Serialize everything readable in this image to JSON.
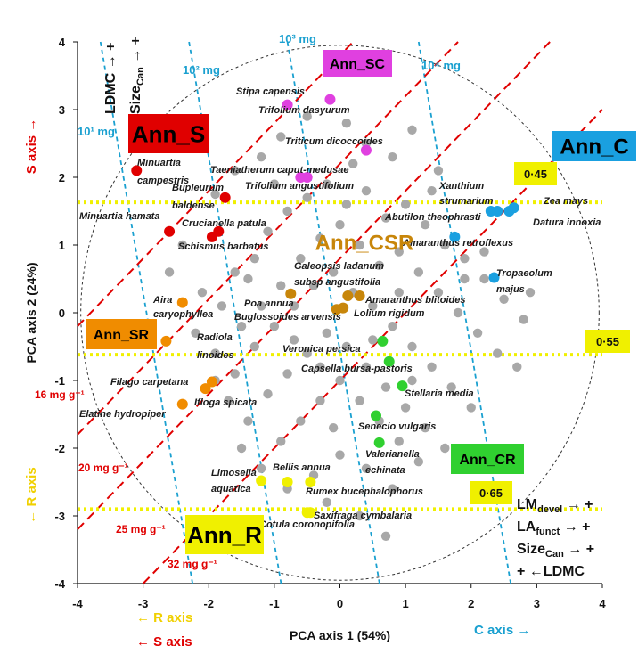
{
  "chart_data": {
    "type": "scatter",
    "xlabel": "PCA axis 1 (54%)",
    "ylabel": "PCA axis 2 (24%)",
    "xlim": [
      -4,
      4
    ],
    "ylim": [
      -4,
      4
    ],
    "xticks": [
      "-4",
      "-3",
      "-2",
      "-1",
      "0",
      "1",
      "2",
      "3",
      "4"
    ],
    "yticks": [
      "-4",
      "-3",
      "-2",
      "-1",
      "0",
      "1",
      "2",
      "3",
      "4"
    ],
    "background_points": [
      [
        -1.9,
        1.75
      ],
      [
        -1.6,
        2.1
      ],
      [
        -1.2,
        2.3
      ],
      [
        -0.9,
        2.6
      ],
      [
        -0.5,
        2.9
      ],
      [
        0.1,
        2.8
      ],
      [
        0.4,
        2.5
      ],
      [
        0.8,
        2.3
      ],
      [
        1.1,
        2.7
      ],
      [
        1.5,
        2.1
      ],
      [
        -2.4,
        1.0
      ],
      [
        -1.6,
        0.6
      ],
      [
        -1.3,
        0.8
      ],
      [
        -1.1,
        1.2
      ],
      [
        -0.8,
        1.5
      ],
      [
        -0.5,
        1.7
      ],
      [
        -0.2,
        1.9
      ],
      [
        0.1,
        1.6
      ],
      [
        0.4,
        1.8
      ],
      [
        0.7,
        1.4
      ],
      [
        1.0,
        1.6
      ],
      [
        1.3,
        1.3
      ],
      [
        1.6,
        1.0
      ],
      [
        1.9,
        0.8
      ],
      [
        2.2,
        0.5
      ],
      [
        2.5,
        0.2
      ],
      [
        2.8,
        -0.1
      ],
      [
        -2.1,
        0.3
      ],
      [
        -1.8,
        0.1
      ],
      [
        -1.5,
        -0.2
      ],
      [
        -1.2,
        0.1
      ],
      [
        -0.9,
        0.4
      ],
      [
        -0.6,
        0.8
      ],
      [
        -0.3,
        1.1
      ],
      [
        0.0,
        1.3
      ],
      [
        0.3,
        1.0
      ],
      [
        0.6,
        0.7
      ],
      [
        0.9,
        0.9
      ],
      [
        1.2,
        0.6
      ],
      [
        1.5,
        0.3
      ],
      [
        1.8,
        0.0
      ],
      [
        2.1,
        -0.3
      ],
      [
        -1.9,
        -0.6
      ],
      [
        -1.6,
        -0.9
      ],
      [
        -1.3,
        -0.5
      ],
      [
        -1.0,
        -0.2
      ],
      [
        -0.7,
        0.1
      ],
      [
        -0.4,
        0.4
      ],
      [
        -0.1,
        0.6
      ],
      [
        0.2,
        0.3
      ],
      [
        0.5,
        0.1
      ],
      [
        0.8,
        -0.2
      ],
      [
        1.1,
        -0.5
      ],
      [
        1.4,
        -0.8
      ],
      [
        1.7,
        -1.1
      ],
      [
        2.0,
        -1.4
      ],
      [
        -1.7,
        -1.3
      ],
      [
        -1.4,
        -1.6
      ],
      [
        -1.1,
        -1.2
      ],
      [
        -0.8,
        -0.9
      ],
      [
        -0.5,
        -0.6
      ],
      [
        -0.2,
        -0.3
      ],
      [
        0.1,
        -0.5
      ],
      [
        0.4,
        -0.8
      ],
      [
        0.7,
        -1.1
      ],
      [
        1.0,
        -1.4
      ],
      [
        1.3,
        -1.7
      ],
      [
        1.6,
        -2.0
      ],
      [
        -1.5,
        -2.0
      ],
      [
        -1.2,
        -2.3
      ],
      [
        -0.9,
        -1.9
      ],
      [
        -0.6,
        -1.6
      ],
      [
        -0.3,
        -1.3
      ],
      [
        0.0,
        -1.0
      ],
      [
        0.3,
        -1.3
      ],
      [
        0.6,
        -1.6
      ],
      [
        0.9,
        -1.9
      ],
      [
        1.2,
        -2.2
      ],
      [
        -0.8,
        -2.6
      ],
      [
        -0.4,
        -2.4
      ],
      [
        0.0,
        -2.1
      ],
      [
        0.4,
        -2.3
      ],
      [
        0.8,
        -2.6
      ],
      [
        0.3,
        -3.0
      ],
      [
        0.7,
        -3.3
      ],
      [
        -0.2,
        -2.8
      ],
      [
        -1.4,
        0.5
      ],
      [
        -0.7,
        -0.4
      ],
      [
        0.9,
        0.3
      ],
      [
        1.9,
        0.5
      ],
      [
        -2.2,
        -0.3
      ],
      [
        -0.3,
        -0.8
      ],
      [
        1.4,
        1.8
      ],
      [
        -1.0,
        1.9
      ],
      [
        0.5,
        -0.4
      ],
      [
        2.4,
        -0.6
      ],
      [
        2.2,
        0.9
      ],
      [
        -2.6,
        0.6
      ],
      [
        2.9,
        0.3
      ],
      [
        2.7,
        -0.8
      ],
      [
        0.2,
        2.2
      ],
      [
        -0.1,
        -1.7
      ],
      [
        1.1,
        -1.0
      ],
      [
        -1.9,
        -1.0
      ]
    ],
    "groups": [
      {
        "name": "Ann_S",
        "color": "#e00000",
        "points": [
          {
            "x": -3.1,
            "y": 2.1,
            "label": "Minuartia campestris"
          },
          {
            "x": -1.75,
            "y": 1.7,
            "label": "Bupleurum baldense"
          },
          {
            "x": -2.6,
            "y": 1.2,
            "label": "Minuartia hamata"
          },
          {
            "x": -1.85,
            "y": 1.2,
            "label": "Crucianella patula"
          },
          {
            "x": -1.95,
            "y": 1.12,
            "label": "Schismus barbatus"
          }
        ]
      },
      {
        "name": "Ann_SC",
        "color": "#e040e0",
        "points": [
          {
            "x": -0.8,
            "y": 3.07,
            "label": "Stipa capensis"
          },
          {
            "x": -0.15,
            "y": 3.15,
            "label": "Trifolium dasyurum"
          },
          {
            "x": 0.4,
            "y": 2.4,
            "label": "Triticum dicoccoides"
          },
          {
            "x": -0.6,
            "y": 2.0,
            "label": "Taeniatherum caput-medusae"
          },
          {
            "x": -0.5,
            "y": 2.0,
            "label": "Trifolium angustifolium"
          }
        ]
      },
      {
        "name": "Ann_C",
        "color": "#1aa0e0",
        "points": [
          {
            "x": 2.3,
            "y": 1.5,
            "label": "Xanthium strumarium"
          },
          {
            "x": 2.65,
            "y": 1.55,
            "label": "Zea mays"
          },
          {
            "x": 2.58,
            "y": 1.5,
            "label": "Datura innoxia"
          },
          {
            "x": 2.4,
            "y": 1.5,
            "label": "Abutilon theophrasti"
          },
          {
            "x": 1.75,
            "y": 1.12,
            "label": "Amaranthus retroflexus"
          },
          {
            "x": 2.35,
            "y": 0.52,
            "label": "Tropaeolum majus"
          }
        ]
      },
      {
        "name": "Ann_CSR",
        "color": "#c8860a",
        "points": [
          {
            "x": -0.75,
            "y": 0.28,
            "label": "Poa annua"
          },
          {
            "x": 0.12,
            "y": 0.25,
            "label": "Galeopsis ladanum subsp angustifolia"
          },
          {
            "x": 0.3,
            "y": 0.25,
            "label": "Amaranthus blitoides"
          },
          {
            "x": 0.05,
            "y": 0.07,
            "label": "Lolium rigidum"
          },
          {
            "x": -0.05,
            "y": 0.05,
            "label": "Buglossoides arvensis"
          }
        ]
      },
      {
        "name": "Ann_SR",
        "color": "#f08c00",
        "points": [
          {
            "x": -2.4,
            "y": 0.15,
            "label": "Aira caryophyllea"
          },
          {
            "x": -2.65,
            "y": -0.42,
            "label": "Radiola linoides"
          },
          {
            "x": -1.95,
            "y": -1.02,
            "label": "Filago carpetana"
          },
          {
            "x": -2.05,
            "y": -1.12,
            "label": "Ifloga spicata"
          },
          {
            "x": -2.4,
            "y": -1.35,
            "label": "Elatine hydropiper"
          }
        ]
      },
      {
        "name": "Ann_CR",
        "color": "#30d030",
        "points": [
          {
            "x": 0.65,
            "y": -0.42,
            "label": "Veronica persica"
          },
          {
            "x": 0.75,
            "y": -0.72,
            "label": "Capsella bursa-pastoris"
          },
          {
            "x": 0.95,
            "y": -1.08,
            "label": "Stellaria media"
          },
          {
            "x": 0.55,
            "y": -1.52,
            "label": "Senecio vulgaris"
          },
          {
            "x": 0.6,
            "y": -1.92,
            "label": "Valerianella echinata"
          }
        ]
      },
      {
        "name": "Ann_R",
        "color": "#f0f000",
        "points": [
          {
            "x": -1.2,
            "y": -2.48,
            "label": "Limosella aquatica"
          },
          {
            "x": -0.8,
            "y": -2.5,
            "label": "Bellis annua"
          },
          {
            "x": -0.45,
            "y": -2.5,
            "label": "Rumex bucephalophorus"
          },
          {
            "x": -0.5,
            "y": -2.95,
            "label": "Cotula coronopifolia"
          },
          {
            "x": -0.45,
            "y": -2.95,
            "label": "Saxifraga cymbalaria"
          }
        ]
      }
    ],
    "size_lines": [
      {
        "label": "10¹ mg",
        "x_at_top": -3.65,
        "slope": -5.7
      },
      {
        "label": "10² mg",
        "x_at_top": -2.3,
        "slope": -5.7
      },
      {
        "label": "10³ mg",
        "x_at_top": -0.8,
        "slope": -5.7
      },
      {
        "label": "10⁴ mg",
        "x_at_top": 1.2,
        "slope": -5.7
      }
    ],
    "ldmc_lines": [
      {
        "label": "16 mg g⁻¹",
        "intercept": 3.8
      },
      {
        "label": "20 mg g⁻¹",
        "intercept": 2.2
      },
      {
        "label": "25 mg g⁻¹",
        "intercept": 0.8
      },
      {
        "label": "32 mg g⁻¹",
        "intercept": -1.0
      }
    ],
    "yellow_lines": [
      {
        "label": "0·45",
        "y": 1.63
      },
      {
        "label": "0·55",
        "y": -0.62
      },
      {
        "label": "0·65",
        "y": -2.9
      }
    ],
    "axis_annotations": {
      "s_axis": "S axis →",
      "r_axis_left": "← R axis",
      "r_axis_bottom": "← R axis",
      "s_axis_bottom": "← S axis",
      "c_axis": "C axis →"
    },
    "top_left_legend": {
      "ldmc": "LDMC",
      "size_main": "Size",
      "size_sub": "Can",
      "arrow": "→ +"
    },
    "bottom_right_legend": [
      {
        "main": "LM",
        "sub": "devel",
        "suffix": " → +"
      },
      {
        "main": "LA",
        "sub": "funct",
        "suffix": " → +"
      },
      {
        "main": "Size",
        "sub": "Can",
        "suffix": " → +"
      },
      {
        "main": "+ ←LDMC",
        "sub": "",
        "suffix": ""
      }
    ],
    "group_boxes": [
      {
        "label": "Ann_S",
        "bg": "#e00000",
        "fg": "#000000"
      },
      {
        "label": "Ann_SC",
        "bg": "#e040e0",
        "fg": "#000000"
      },
      {
        "label": "Ann_C",
        "bg": "#1aa0e0",
        "fg": "#000000"
      },
      {
        "label": "Ann_SR",
        "bg": "#f08c00",
        "fg": "#000000"
      },
      {
        "label": "Ann_CR",
        "bg": "#30d030",
        "fg": "#000000"
      },
      {
        "label": "Ann_R",
        "bg": "#f0f000",
        "fg": "#000000"
      },
      {
        "label": "Ann_CSR",
        "bg": "none",
        "fg": "#c8860a"
      }
    ]
  }
}
